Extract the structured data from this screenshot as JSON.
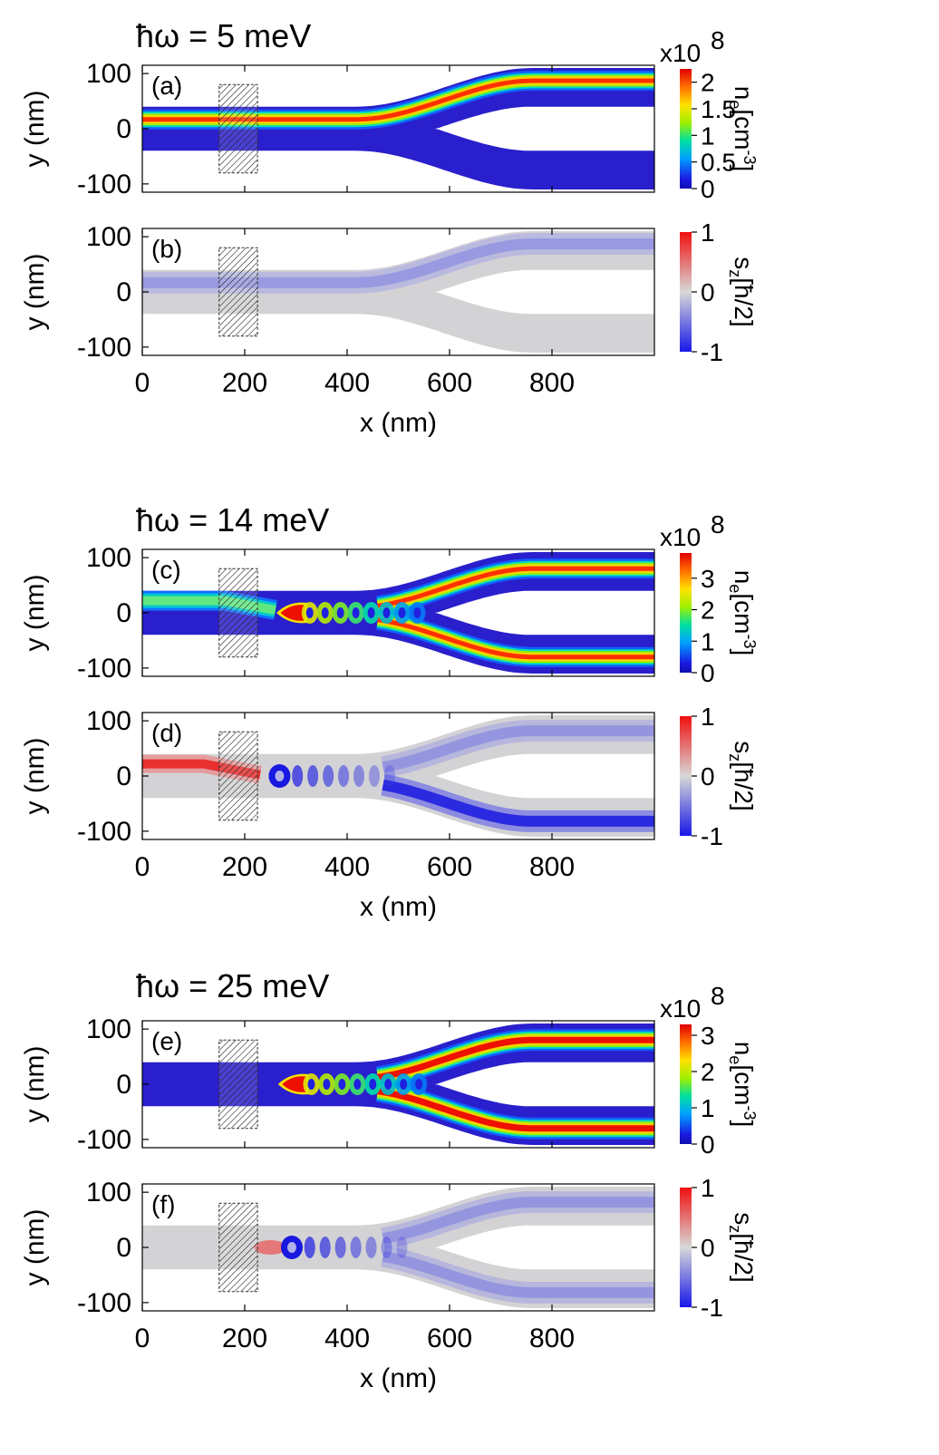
{
  "chart_data": [
    {
      "type": "heatmap",
      "title": "ħω = 5 meV",
      "panels": [
        {
          "label": "(a)",
          "quantity": "electron density",
          "xlabel": "",
          "ylabel": "y (nm)",
          "xlim": [
            0,
            1000
          ],
          "ylim": [
            -115,
            115
          ],
          "x_ticks": [],
          "y_ticks": [
            "100",
            "0",
            "-100"
          ],
          "colorbar": {
            "label": "n",
            "sub": "e",
            "unit": "[cm",
            "sup": "-3",
            "close": "]",
            "multiplier": "x10",
            "multiplier_exp": "8",
            "ticks": [
              "2",
              "1.5",
              "1",
              "0.5",
              "0"
            ],
            "tick_values": [
              2,
              1.5,
              1,
              0.5,
              0
            ],
            "range": [
              0,
              2.25
            ],
            "colormap": "rainbow"
          },
          "pattern": "single-branch-top"
        },
        {
          "label": "(b)",
          "quantity": "spin sz",
          "xlabel": "x (nm)",
          "ylabel": "y (nm)",
          "xlim": [
            0,
            1000
          ],
          "ylim": [
            -115,
            115
          ],
          "x_ticks": [
            "0",
            "200",
            "400",
            "600",
            "800"
          ],
          "y_ticks": [
            "100",
            "0",
            "-100"
          ],
          "colorbar": {
            "label": "s",
            "sub": "z",
            "unit": "[ħ/2]",
            "ticks": [
              "1",
              "0",
              "-1"
            ],
            "tick_values": [
              1,
              0,
              -1
            ],
            "range": [
              -1,
              1
            ],
            "colormap": "blue-gray-red"
          },
          "pattern": "spin-weak-top"
        }
      ]
    },
    {
      "type": "heatmap",
      "title": "ħω = 14 meV",
      "panels": [
        {
          "label": "(c)",
          "quantity": "electron density",
          "xlabel": "",
          "ylabel": "y (nm)",
          "xlim": [
            0,
            1000
          ],
          "ylim": [
            -115,
            115
          ],
          "x_ticks": [],
          "y_ticks": [
            "100",
            "0",
            "-100"
          ],
          "colorbar": {
            "label": "n",
            "sub": "e",
            "unit": "[cm",
            "sup": "-3",
            "close": "]",
            "multiplier": "x10",
            "multiplier_exp": "8",
            "ticks": [
              "3",
              "2",
              "1",
              "0"
            ],
            "tick_values": [
              3,
              2,
              1,
              0
            ],
            "range": [
              0,
              3.8
            ],
            "colormap": "rainbow"
          },
          "pattern": "split-both"
        },
        {
          "label": "(d)",
          "quantity": "spin sz",
          "xlabel": "x (nm)",
          "ylabel": "y (nm)",
          "xlim": [
            0,
            1000
          ],
          "ylim": [
            -115,
            115
          ],
          "x_ticks": [
            "0",
            "200",
            "400",
            "600",
            "800"
          ],
          "y_ticks": [
            "100",
            "0",
            "-100"
          ],
          "colorbar": {
            "label": "s",
            "sub": "z",
            "unit": "[ħ/2]",
            "ticks": [
              "1",
              "0",
              "-1"
            ],
            "tick_values": [
              1,
              0,
              -1
            ],
            "range": [
              -1,
              1
            ],
            "colormap": "blue-gray-red"
          },
          "pattern": "spin-split-red-in"
        }
      ]
    },
    {
      "type": "heatmap",
      "title": "ħω = 25 meV",
      "panels": [
        {
          "label": "(e)",
          "quantity": "electron density",
          "xlabel": "",
          "ylabel": "y (nm)",
          "xlim": [
            0,
            1000
          ],
          "ylim": [
            -115,
            115
          ],
          "x_ticks": [],
          "y_ticks": [
            "100",
            "0",
            "-100"
          ],
          "colorbar": {
            "label": "n",
            "sub": "e",
            "unit": "[cm",
            "sup": "-3",
            "close": "]",
            "multiplier": "x10",
            "multiplier_exp": "8",
            "ticks": [
              "3",
              "2",
              "1",
              "0"
            ],
            "tick_values": [
              3,
              2,
              1,
              0
            ],
            "range": [
              0,
              3.3
            ],
            "colormap": "rainbow"
          },
          "pattern": "split-both-strong"
        },
        {
          "label": "(f)",
          "quantity": "spin sz",
          "xlabel": "x (nm)",
          "ylabel": "y (nm)",
          "xlim": [
            0,
            1000
          ],
          "ylim": [
            -115,
            115
          ],
          "x_ticks": [
            "0",
            "200",
            "400",
            "600",
            "800"
          ],
          "y_ticks": [
            "100",
            "0",
            "-100"
          ],
          "colorbar": {
            "label": "s",
            "sub": "z",
            "unit": "[ħ/2]",
            "ticks": [
              "1",
              "0",
              "-1"
            ],
            "tick_values": [
              1,
              0,
              -1
            ],
            "range": [
              -1,
              1
            ],
            "colormap": "blue-gray-red"
          },
          "pattern": "spin-split"
        }
      ]
    }
  ],
  "colors": {
    "density_background": "#2a1fcc",
    "spin_neutral": "#d3d3d5",
    "spin_blue": "#2a2ae0",
    "spin_red": "#e8262a"
  }
}
